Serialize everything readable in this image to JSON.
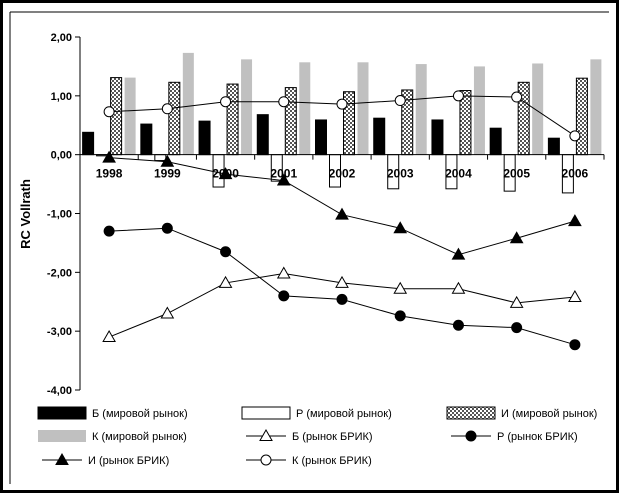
{
  "chart_data": {
    "type": "bar",
    "ylabel": "RC Vollrath",
    "ylim": [
      -4,
      2
    ],
    "yticks": [
      "2,00",
      "1,00",
      "0,00",
      "-1,00",
      "-2,00",
      "-3,00",
      "-4,00"
    ],
    "ytick_values": [
      2,
      1,
      0,
      -1,
      -2,
      -3,
      -4
    ],
    "categories": [
      "1998",
      "1999",
      "2000",
      "2001",
      "2002",
      "2003",
      "2004",
      "2005",
      "2006"
    ],
    "grid": false,
    "legend_position": "bottom",
    "series": [
      {
        "name": "Б (мировой рынок)",
        "kind": "bar",
        "style": "black",
        "values": [
          0.38,
          0.52,
          0.57,
          0.68,
          0.59,
          0.62,
          0.59,
          0.45,
          0.28
        ]
      },
      {
        "name": "Р (мировой рынок)",
        "kind": "bar",
        "style": "white",
        "values": [
          -0.02,
          -0.1,
          -0.55,
          -0.45,
          -0.55,
          -0.58,
          -0.58,
          -0.62,
          -0.65
        ]
      },
      {
        "name": "И (мировой рынок)",
        "kind": "bar",
        "style": "hatched",
        "values": [
          1.31,
          1.23,
          1.2,
          1.14,
          1.07,
          1.1,
          1.09,
          1.23,
          1.3
        ]
      },
      {
        "name": "К (мировой рынок)",
        "kind": "bar",
        "style": "gray",
        "values": [
          1.31,
          1.73,
          1.62,
          1.57,
          1.57,
          1.54,
          1.5,
          1.55,
          1.62
        ]
      },
      {
        "name": "Б (рынок БРИК)",
        "kind": "line",
        "marker": "open-triangle",
        "values": [
          -3.1,
          -2.7,
          -2.18,
          -2.02,
          -2.18,
          -2.28,
          -2.28,
          -2.52,
          -2.42
        ]
      },
      {
        "name": "Р (рынок БРИК)",
        "kind": "line",
        "marker": "filled-circle",
        "values": [
          -1.3,
          -1.25,
          -1.65,
          -2.4,
          -2.46,
          -2.74,
          -2.9,
          -2.94,
          -3.23
        ]
      },
      {
        "name": "И (рынок БРИК)",
        "kind": "line",
        "marker": "filled-triangle",
        "values": [
          -0.05,
          -0.12,
          -0.33,
          -0.44,
          -1.02,
          -1.25,
          -1.7,
          -1.42,
          -1.13
        ]
      },
      {
        "name": "К (рынок БРИК)",
        "kind": "line",
        "marker": "open-circle",
        "values": [
          0.73,
          0.78,
          0.9,
          0.9,
          0.86,
          0.92,
          1.0,
          0.98,
          0.32
        ]
      }
    ]
  }
}
